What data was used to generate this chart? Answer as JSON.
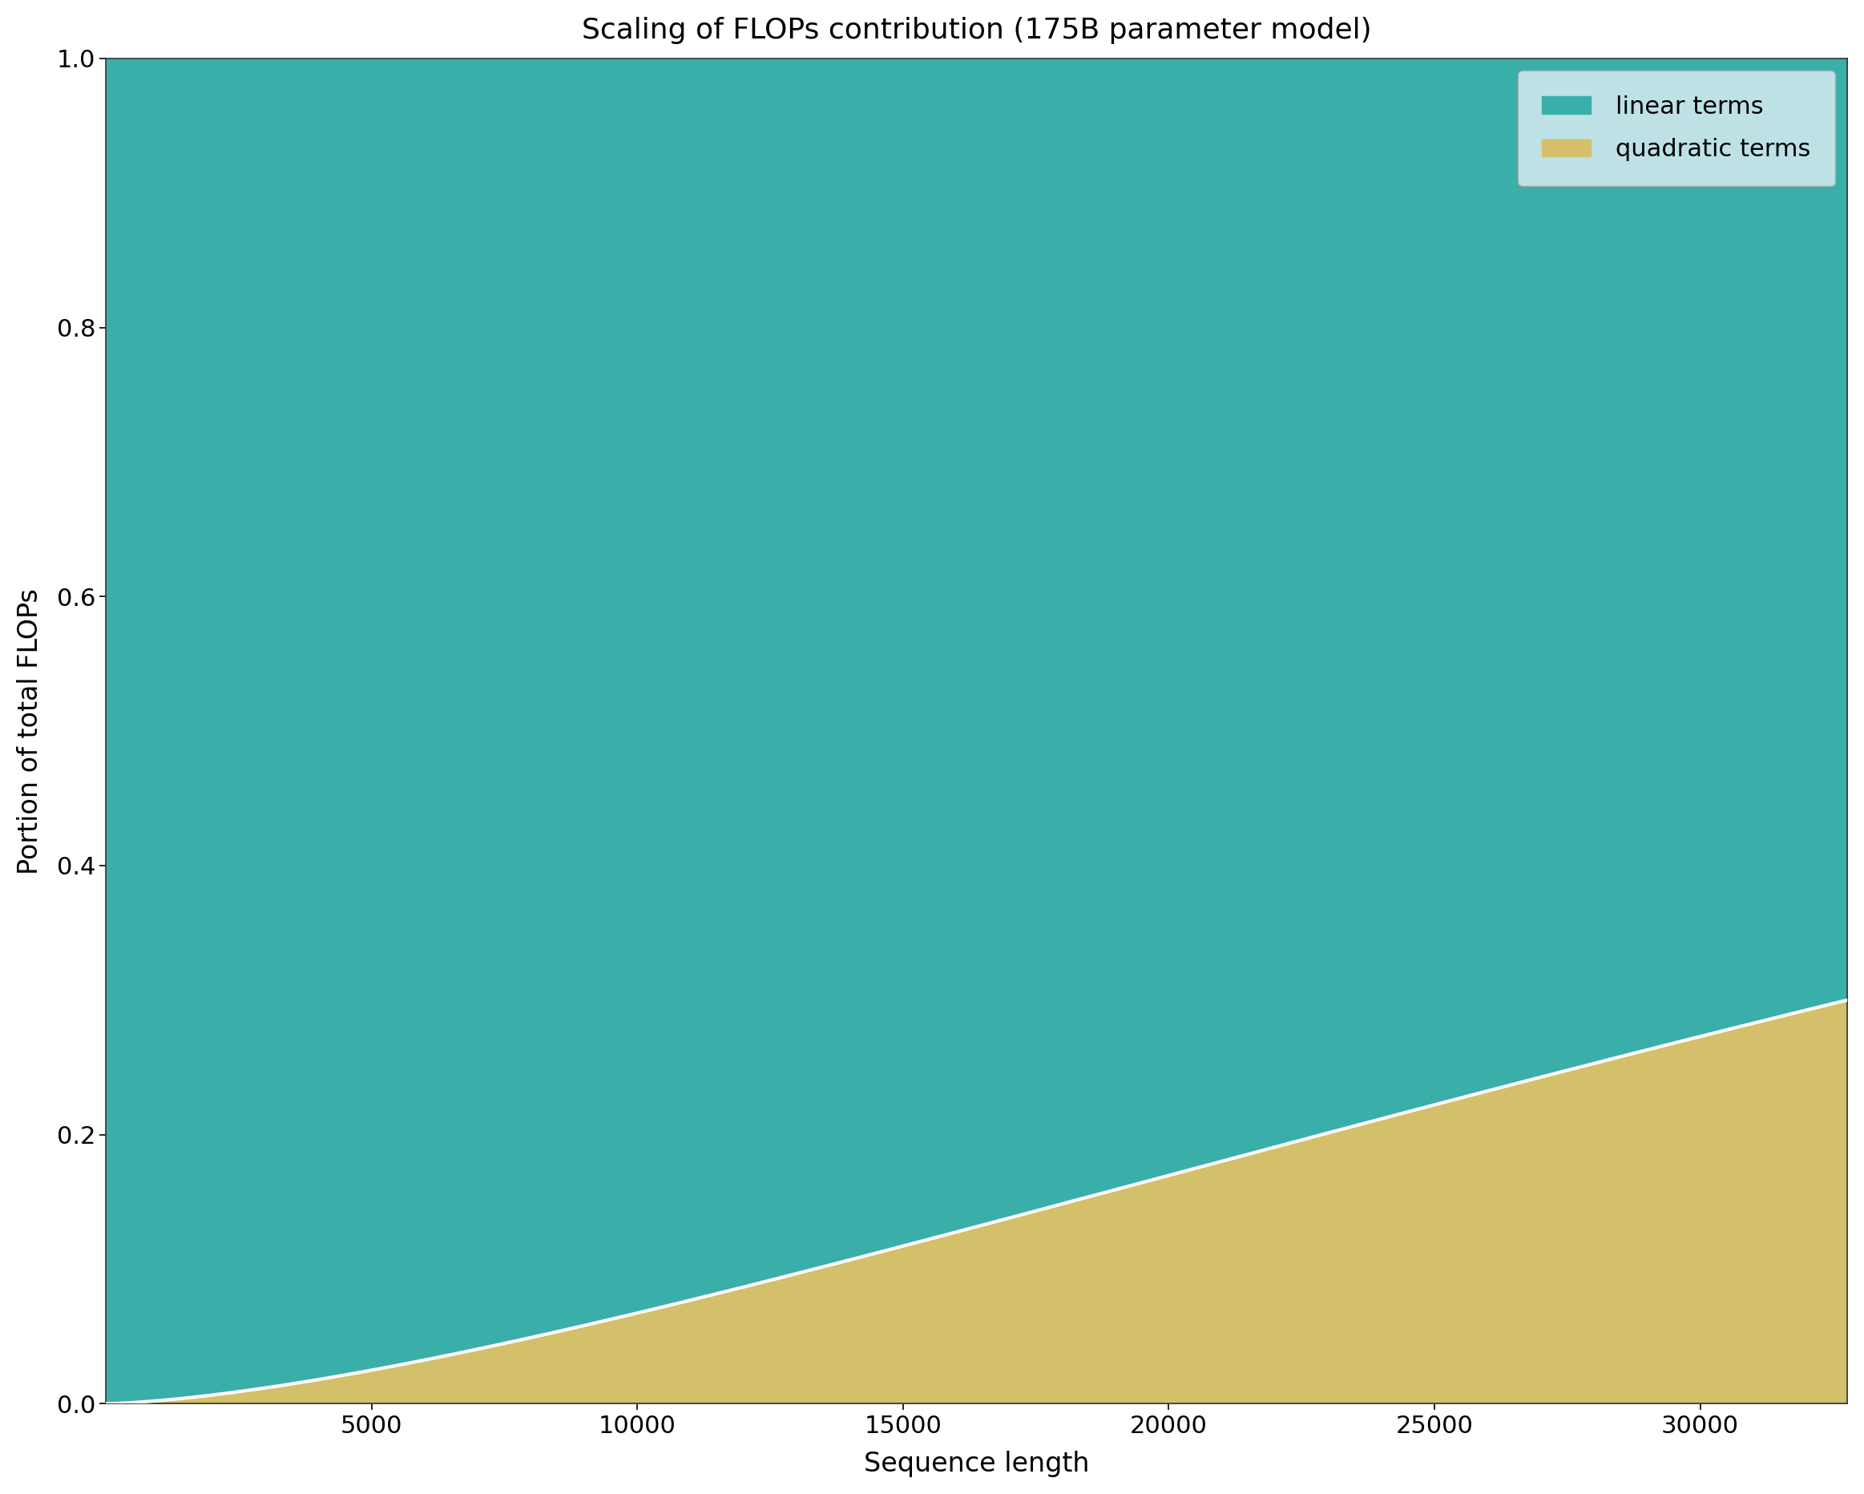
{
  "title": "Scaling of FLOPs contribution (175B parameter model)",
  "xlabel": "Sequence length",
  "ylabel": "Portion of total FLOPs",
  "x_min": 0,
  "x_max": 32768,
  "y_min": 0.0,
  "y_max": 1.0,
  "d_model": 12288,
  "k_factor": 6.0,
  "power": 1.5,
  "linear_color": "#3aafa9",
  "quadratic_color": "#d4c06a",
  "legend_bg_color": "#d6eaf0",
  "legend_linear_label": "linear terms",
  "legend_quadratic_label": "quadratic terms",
  "title_fontsize": 26,
  "axis_label_fontsize": 24,
  "tick_fontsize": 22,
  "legend_fontsize": 22,
  "background_color": "#ffffff",
  "x_ticks": [
    5000,
    10000,
    15000,
    20000,
    25000,
    30000
  ],
  "y_ticks": [
    0.0,
    0.2,
    0.4,
    0.6,
    0.8,
    1.0
  ]
}
